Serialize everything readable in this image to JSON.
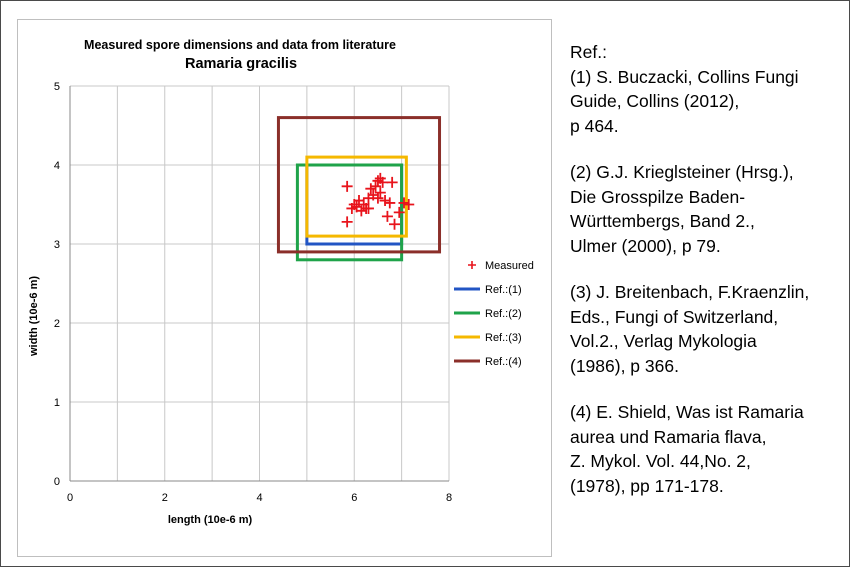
{
  "references": {
    "heading": "Ref.:",
    "items": [
      "(1) S. Buczacki, Collins Fungi\nGuide, Collins (2012),\np 464.",
      "(2) G.J. Kriegl­steiner (Hrsg.),\nDie Grosspilze Baden-\nWürttembergs, Band 2.,\nUlmer (2000), p 79.",
      "(3) J. Breitenbach, F.Kraenzlin,\nEds., Fungi of Switzerland,\nVol.2., Verlag Mykologia\n(1986), p 366.",
      "(4) E. Shield, Was ist Ramaria\naurea und Ramaria flava,\nZ. Mykol. Vol. 44,No. 2,\n(1978), pp 171-178."
    ]
  },
  "chart_data": {
    "type": "scatter",
    "title": "Measured spore dimensions and data from literature",
    "subtitle": "Ramaria gracilis",
    "xlabel": "length (10e-6 m)",
    "ylabel": "width (10e-6 m)",
    "xlim": [
      0,
      8
    ],
    "ylim": [
      0,
      5
    ],
    "xticks": [
      0,
      2,
      4,
      6,
      8
    ],
    "yticks": [
      0,
      1,
      2,
      3,
      4,
      5
    ],
    "grid": true,
    "legend_position": "right",
    "measured": {
      "name": "Measured",
      "color": "#e8141c",
      "marker": "plus",
      "points": [
        [
          5.85,
          3.73
        ],
        [
          5.85,
          3.28
        ],
        [
          5.95,
          3.45
        ],
        [
          6.0,
          3.5
        ],
        [
          6.05,
          3.47
        ],
        [
          6.1,
          3.55
        ],
        [
          6.15,
          3.42
        ],
        [
          6.2,
          3.5
        ],
        [
          6.25,
          3.45
        ],
        [
          6.3,
          3.58
        ],
        [
          6.35,
          3.7
        ],
        [
          6.4,
          3.62
        ],
        [
          6.45,
          3.73
        ],
        [
          6.5,
          3.8
        ],
        [
          6.55,
          3.83
        ],
        [
          6.6,
          3.78
        ],
        [
          6.5,
          3.58
        ],
        [
          6.65,
          3.55
        ],
        [
          6.7,
          3.35
        ],
        [
          6.75,
          3.52
        ],
        [
          6.8,
          3.78
        ],
        [
          6.85,
          3.25
        ],
        [
          6.95,
          3.4
        ],
        [
          7.05,
          3.52
        ],
        [
          7.15,
          3.5
        ],
        [
          6.3,
          3.45
        ],
        [
          6.55,
          3.65
        ]
      ]
    },
    "references": [
      {
        "name": "Ref.:(1)",
        "color": "#2255c4",
        "x": [
          5.0,
          7.0
        ],
        "y": [
          3.0,
          4.0
        ]
      },
      {
        "name": "Ref.:(2)",
        "color": "#1fa34a",
        "x": [
          4.8,
          7.0
        ],
        "y": [
          2.8,
          4.0
        ]
      },
      {
        "name": "Ref.:(3)",
        "color": "#f5b800",
        "x": [
          5.0,
          7.1
        ],
        "y": [
          3.1,
          4.1
        ]
      },
      {
        "name": "Ref.:(4)",
        "color": "#8b2f2a",
        "x": [
          4.4,
          7.8
        ],
        "y": [
          2.9,
          4.6
        ]
      }
    ]
  }
}
